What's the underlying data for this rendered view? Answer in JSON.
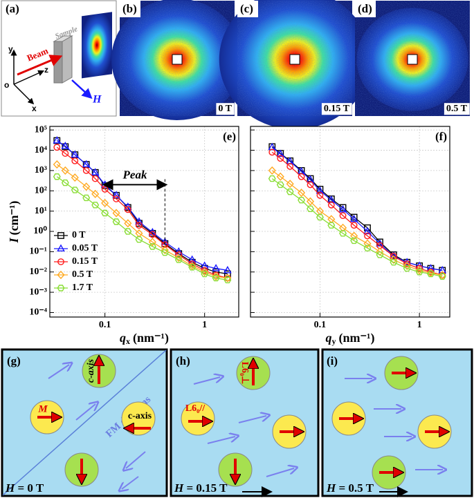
{
  "panels": {
    "a": {
      "label": "(a)",
      "sample": "Sample",
      "beam": "Beam",
      "axis_y": "y",
      "axis_z": "z",
      "origin": "o",
      "axis_x": "x",
      "field": "H"
    },
    "b": {
      "label": "(b)",
      "field": "0 T"
    },
    "c": {
      "label": "(c)",
      "field": "0.15 T"
    },
    "d": {
      "label": "(d)",
      "field": "0.5 T"
    }
  },
  "chart_data": [
    {
      "type": "line",
      "label": "(e)",
      "xscale": "log",
      "yscale": "log",
      "grid": true,
      "legend": "lower left",
      "ylabel": {
        "symbol": "I",
        "unit": "(cm⁻¹)"
      },
      "xlabel": {
        "symbol": "q",
        "sub": "x",
        "unit": "(nm⁻¹)"
      },
      "xlim": [
        0.028,
        2.2
      ],
      "ylim": [
        6e-05,
        150000
      ],
      "xticks": [
        0.1,
        1
      ],
      "yticks": [
        {
          "value": 0.0001,
          "label": "10⁻⁴"
        },
        {
          "value": 0.001,
          "label": "10⁻³"
        },
        {
          "value": 0.01,
          "label": "10⁻²"
        },
        {
          "value": 0.1,
          "label": "10⁻¹"
        },
        {
          "value": 1,
          "label": "10⁰"
        },
        {
          "value": 10,
          "label": "10¹"
        },
        {
          "value": 100,
          "label": "10²"
        },
        {
          "value": 1000,
          "label": "10³"
        },
        {
          "value": 10000,
          "label": "10⁴"
        },
        {
          "value": 100000,
          "label": "10⁵"
        }
      ],
      "annotation": {
        "text": "Peak",
        "x": [
          0.1,
          0.4
        ],
        "y": 200
      },
      "x": [
        0.033,
        0.04,
        0.05,
        0.065,
        0.08,
        0.1,
        0.13,
        0.17,
        0.22,
        0.3,
        0.4,
        0.55,
        0.75,
        1.0,
        1.3,
        1.7
      ],
      "series": [
        {
          "name": "0 T",
          "color": "#000000",
          "marker": "square",
          "values": [
            30000,
            15000,
            6000,
            2000,
            800,
            180,
            60,
            15,
            2.5,
            0.8,
            0.25,
            0.08,
            0.03,
            0.015,
            0.01,
            0.008
          ]
        },
        {
          "name": "0.05 T",
          "color": "#1a1aff",
          "marker": "triangle",
          "values": [
            30000,
            16000,
            6000,
            2000,
            800,
            200,
            60,
            16,
            3,
            0.9,
            0.3,
            0.1,
            0.04,
            0.02,
            0.015,
            0.012
          ]
        },
        {
          "name": "0.15 T",
          "color": "#ff1a1a",
          "marker": "circle",
          "values": [
            14000,
            7000,
            3000,
            1000,
            400,
            120,
            40,
            12,
            2,
            0.7,
            0.22,
            0.07,
            0.025,
            0.012,
            0.007,
            0.005
          ]
        },
        {
          "name": "0.5 T",
          "color": "#ffaa22",
          "marker": "diamond",
          "values": [
            2000,
            1000,
            450,
            160,
            70,
            25,
            8,
            2.5,
            0.8,
            0.3,
            0.12,
            0.05,
            0.02,
            0.01,
            0.006,
            0.005
          ]
        },
        {
          "name": "1.7 T",
          "color": "#88dd33",
          "marker": "hexagon",
          "values": [
            500,
            250,
            110,
            45,
            20,
            8,
            3,
            1,
            0.4,
            0.18,
            0.09,
            0.04,
            0.017,
            0.008,
            0.005,
            0.004
          ]
        }
      ]
    },
    {
      "type": "line",
      "label": "(f)",
      "xscale": "log",
      "yscale": "log",
      "grid": true,
      "xlabel": {
        "symbol": "q",
        "sub": "y",
        "unit": "(nm⁻¹)"
      },
      "xlim": [
        0.02,
        2.02
      ],
      "ylim": [
        6e-05,
        150000
      ],
      "xticks": [
        0.1,
        1
      ],
      "yticks": [
        0.0001,
        0.001,
        0.01,
        0.1,
        1,
        10,
        100,
        1000,
        10000,
        100000
      ],
      "x": [
        0.033,
        0.04,
        0.05,
        0.065,
        0.08,
        0.1,
        0.13,
        0.17,
        0.22,
        0.3,
        0.4,
        0.55,
        0.75,
        1.0,
        1.3,
        1.7
      ],
      "series": [
        {
          "color": "#000000",
          "marker": "square",
          "values": [
            15000,
            7000,
            3000,
            1000,
            400,
            120,
            40,
            15,
            5,
            1.5,
            0.3,
            0.07,
            0.03,
            0.02,
            0.015,
            0.012
          ]
        },
        {
          "color": "#1a1aff",
          "marker": "triangle",
          "values": [
            14000,
            6500,
            2800,
            900,
            350,
            100,
            35,
            12,
            4,
            1,
            0.25,
            0.06,
            0.03,
            0.02,
            0.015,
            0.012
          ]
        },
        {
          "color": "#ff1a1a",
          "marker": "circle",
          "values": [
            8000,
            4000,
            1600,
            500,
            200,
            60,
            20,
            6,
            2,
            0.6,
            0.2,
            0.06,
            0.025,
            0.015,
            0.01,
            0.007
          ]
        },
        {
          "color": "#ffaa22",
          "marker": "diamond",
          "values": [
            1000,
            500,
            220,
            80,
            30,
            10,
            4,
            1.5,
            0.6,
            0.25,
            0.1,
            0.04,
            0.02,
            0.012,
            0.009,
            0.007
          ]
        },
        {
          "color": "#88dd33",
          "marker": "hexagon",
          "values": [
            400,
            200,
            90,
            35,
            13,
            5,
            2,
            0.8,
            0.35,
            0.15,
            0.07,
            0.03,
            0.015,
            0.01,
            0.008,
            0.006
          ]
        }
      ]
    }
  ],
  "diagrams": {
    "g": {
      "label": "(g)",
      "c_axis_top": "c-axis",
      "moment": "M",
      "c_axis_right": "c-axis",
      "domains": "FM domains",
      "field_symbol": "H",
      "field": "= 0 T"
    },
    "h": {
      "label": "(h)",
      "perp": "L6₀⊥",
      "para": "L6₀//",
      "field_symbol": "H",
      "field": "= 0.15 T"
    },
    "i": {
      "label": "(i)",
      "field_symbol": "H",
      "field": "= 0.5 T"
    }
  }
}
